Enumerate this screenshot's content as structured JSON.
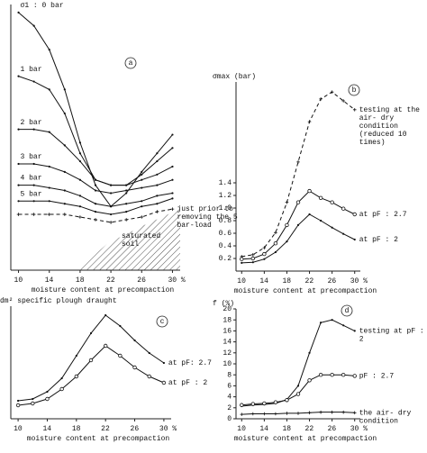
{
  "chart_data": [
    {
      "type": "line",
      "panel": "a",
      "xlabel": "moisture content at precompaction",
      "x": [
        10,
        12,
        14,
        16,
        18,
        20,
        22,
        24,
        26,
        28,
        30
      ],
      "xlim": [
        9,
        31
      ],
      "xticks": [
        10,
        14,
        18,
        22,
        26,
        {
          "value": 30,
          "label": "30 %"
        }
      ],
      "ylim": [
        0,
        10
      ],
      "annotation": "saturated soil",
      "series": [
        {
          "name": "σ1 : 0 bar",
          "color": "#111",
          "marker": "dot",
          "label_at": "start",
          "values": [
            9.7,
            9.2,
            8.3,
            6.8,
            4.8,
            3.2,
            2.4,
            2.9,
            3.7,
            4.4,
            5.1
          ]
        },
        {
          "name": "1 bar",
          "color": "#111",
          "marker": "dot",
          "label_at": "start",
          "values": [
            7.3,
            7.1,
            6.8,
            5.9,
            4.4,
            3.4,
            3.2,
            3.2,
            3.6,
            4.1,
            4.6
          ]
        },
        {
          "name": "2 bar",
          "color": "#111",
          "marker": "dot",
          "label_at": "start",
          "values": [
            5.3,
            5.3,
            5.2,
            4.7,
            4.1,
            3.4,
            3.2,
            3.2,
            3.4,
            3.6,
            3.9
          ]
        },
        {
          "name": "3 bar",
          "color": "#111",
          "marker": "dot",
          "label_at": "start",
          "values": [
            4.0,
            4.0,
            3.9,
            3.7,
            3.4,
            3.0,
            2.9,
            3.0,
            3.1,
            3.2,
            3.4
          ]
        },
        {
          "name": "4 bar",
          "color": "#111",
          "marker": "dot",
          "label_at": "start",
          "values": [
            3.2,
            3.2,
            3.1,
            3.0,
            2.8,
            2.5,
            2.4,
            2.5,
            2.6,
            2.8,
            2.9
          ]
        },
        {
          "name": "5 bar",
          "color": "#111",
          "marker": "dot",
          "label_at": "start",
          "values": [
            2.6,
            2.6,
            2.6,
            2.5,
            2.4,
            2.2,
            2.1,
            2.2,
            2.4,
            2.5,
            2.7
          ]
        },
        {
          "name": "just prior to removing the 5 bar-load",
          "color": "#111",
          "marker": "cross",
          "dashed": true,
          "label_at": "end",
          "values": [
            2.1,
            2.1,
            2.1,
            2.1,
            2.0,
            1.9,
            1.8,
            1.9,
            2.0,
            2.2,
            2.3
          ]
        }
      ]
    },
    {
      "type": "line",
      "panel": "b",
      "xlabel": "moisture content at precompaction",
      "ylabel": "σmax (bar)",
      "x": [
        10,
        12,
        14,
        16,
        18,
        20,
        22,
        24,
        26,
        28,
        30
      ],
      "xlim": [
        9,
        31
      ],
      "xticks": [
        10,
        14,
        18,
        22,
        26,
        {
          "value": 30,
          "label": "30 %"
        }
      ],
      "ylim": [
        0,
        3
      ],
      "yticks": [
        0.2,
        0.4,
        0.6,
        0.8,
        {
          "value": 1,
          "label": "1.0"
        },
        1.2,
        1.4
      ],
      "series": [
        {
          "name": "testing at the air- dry condition (reduced 10 times)",
          "color": "#111",
          "marker": "cross",
          "dashed": true,
          "label_at": "end",
          "values": [
            0.23,
            0.26,
            0.37,
            0.61,
            1.09,
            1.73,
            2.37,
            2.73,
            2.84,
            2.7,
            2.56
          ]
        },
        {
          "name": "at pF : 2.7",
          "color": "#111",
          "marker": "circle",
          "label_at": "end",
          "values": [
            0.19,
            0.2,
            0.27,
            0.44,
            0.73,
            1.09,
            1.27,
            1.16,
            1.09,
            0.99,
            0.9
          ]
        },
        {
          "name": "at pF : 2",
          "color": "#111",
          "marker": "dot",
          "label_at": "end",
          "values": [
            0.13,
            0.14,
            0.19,
            0.3,
            0.47,
            0.73,
            0.9,
            0.8,
            0.69,
            0.59,
            0.5
          ]
        }
      ]
    },
    {
      "type": "line",
      "panel": "c",
      "xlabel": "moisture content at precompaction",
      "ylabel": "dm² specific plough draught",
      "x": [
        10,
        12,
        14,
        16,
        18,
        20,
        22,
        24,
        26,
        28,
        30
      ],
      "xlim": [
        9,
        31
      ],
      "xticks": [
        10,
        14,
        18,
        22,
        26,
        {
          "value": 30,
          "label": "30 %"
        }
      ],
      "ylim": [
        0,
        12.5
      ],
      "series": [
        {
          "name": "at pF: 2.7",
          "color": "#111",
          "marker": "dot",
          "label_at": "end",
          "values": [
            2.0,
            2.2,
            3.0,
            4.5,
            7.0,
            9.5,
            11.5,
            10.3,
            8.7,
            7.3,
            6.2
          ]
        },
        {
          "name": "at pF : 2",
          "color": "#111",
          "marker": "circle",
          "label_at": "end",
          "values": [
            1.5,
            1.7,
            2.2,
            3.3,
            4.7,
            6.5,
            8.1,
            7.0,
            5.7,
            4.7,
            4.0
          ]
        }
      ]
    },
    {
      "type": "line",
      "panel": "d",
      "xlabel": "moisture content at precompaction",
      "ylabel": "f (%)",
      "x": [
        10,
        12,
        14,
        16,
        18,
        20,
        22,
        24,
        26,
        28,
        30
      ],
      "xlim": [
        9,
        31
      ],
      "xticks": [
        10,
        14,
        18,
        22,
        26,
        {
          "value": 30,
          "label": "30 %"
        }
      ],
      "ylim": [
        0,
        20
      ],
      "yticks": [
        0,
        2,
        4,
        6,
        8,
        10,
        12,
        14,
        16,
        18,
        20
      ],
      "series": [
        {
          "name": "testing at pF : 2",
          "color": "#111",
          "marker": "dot",
          "label_at": "end",
          "values": [
            2.3,
            2.5,
            2.6,
            2.8,
            3.5,
            6,
            12,
            17.5,
            18,
            17,
            16
          ]
        },
        {
          "name": "pF : 2.7",
          "color": "#111",
          "marker": "circle",
          "label_at": "end",
          "values": [
            2.5,
            2.7,
            2.8,
            3,
            3.4,
            4.5,
            7,
            8,
            8,
            8,
            7.8
          ]
        },
        {
          "name": "the air- dry condition",
          "color": "#111",
          "marker": "cross",
          "label_at": "end",
          "values": [
            0.8,
            0.9,
            0.9,
            0.9,
            1.0,
            1.0,
            1.1,
            1.2,
            1.2,
            1.2,
            1.1
          ]
        }
      ]
    }
  ]
}
